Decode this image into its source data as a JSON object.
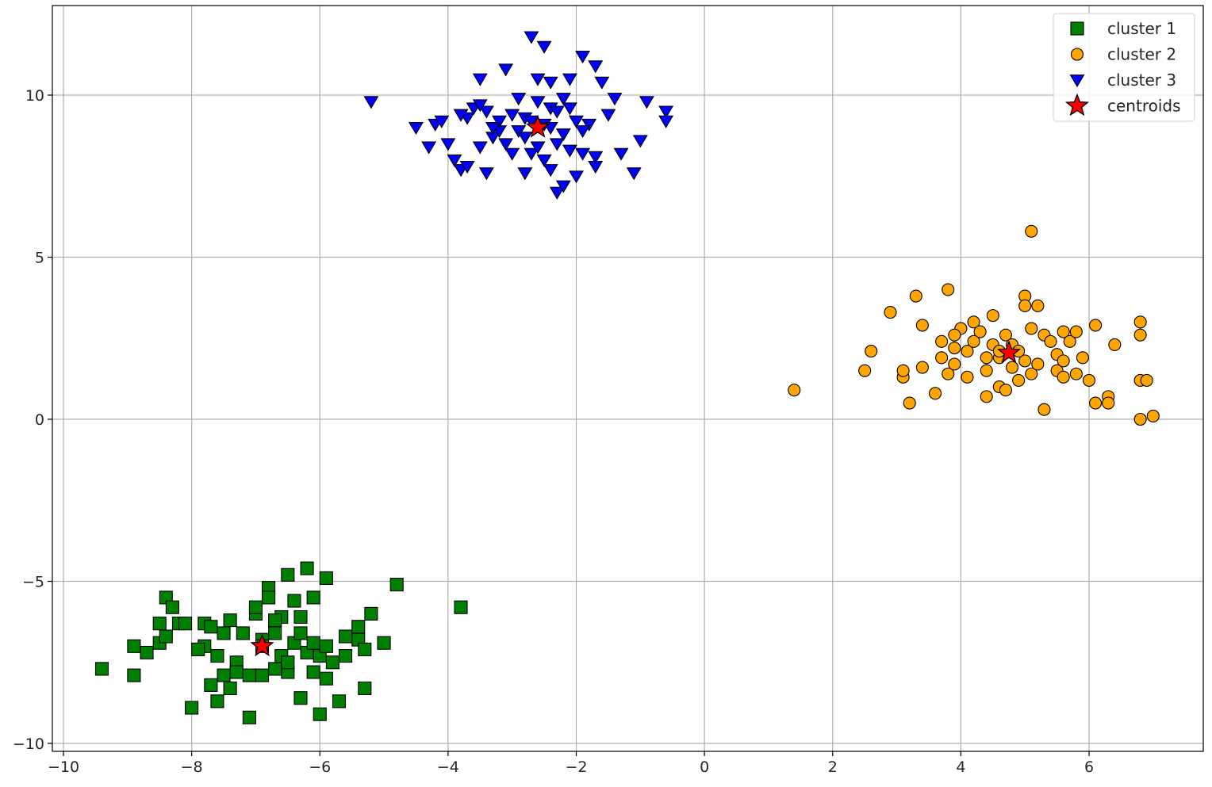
{
  "chart_data": {
    "type": "scatter",
    "title": "",
    "xlabel": "",
    "ylabel": "",
    "xlim": [
      -10.2,
      7.8
    ],
    "ylim": [
      -10.2,
      12.8
    ],
    "grid": true,
    "legend_position": "upper right",
    "x_ticks": [
      -10,
      -8,
      -6,
      -4,
      -2,
      0,
      2,
      4,
      6
    ],
    "y_ticks": [
      -10,
      -5,
      0,
      5,
      10
    ],
    "x_tick_labels": [
      "−10",
      "−8",
      "−6",
      "−4",
      "−2",
      "0",
      "2",
      "4",
      "6"
    ],
    "y_tick_labels": [
      "−10",
      "−5",
      "0",
      "5",
      "10"
    ],
    "series": [
      {
        "name": "cluster 1",
        "marker": "square",
        "color": "#008000",
        "edgecolor": "#000000",
        "points": [
          [
            -9.4,
            -7.7
          ],
          [
            -8.9,
            -7.0
          ],
          [
            -8.9,
            -7.9
          ],
          [
            -8.7,
            -7.2
          ],
          [
            -8.5,
            -6.9
          ],
          [
            -8.5,
            -6.3
          ],
          [
            -8.4,
            -6.7
          ],
          [
            -8.4,
            -5.5
          ],
          [
            -8.3,
            -5.8
          ],
          [
            -8.2,
            -6.3
          ],
          [
            -8.1,
            -6.3
          ],
          [
            -8.0,
            -8.9
          ],
          [
            -7.8,
            -7.0
          ],
          [
            -7.8,
            -6.3
          ],
          [
            -7.7,
            -8.2
          ],
          [
            -7.6,
            -8.7
          ],
          [
            -7.6,
            -7.3
          ],
          [
            -7.5,
            -6.6
          ],
          [
            -7.5,
            -7.9
          ],
          [
            -7.4,
            -8.3
          ],
          [
            -7.4,
            -6.2
          ],
          [
            -7.3,
            -7.5
          ],
          [
            -7.2,
            -6.6
          ],
          [
            -7.1,
            -7.9
          ],
          [
            -7.1,
            -9.2
          ],
          [
            -7.0,
            -6.0
          ],
          [
            -7.0,
            -5.8
          ],
          [
            -6.9,
            -6.8
          ],
          [
            -6.9,
            -7.9
          ],
          [
            -6.8,
            -5.2
          ],
          [
            -6.8,
            -5.5
          ],
          [
            -6.7,
            -6.6
          ],
          [
            -6.7,
            -7.7
          ],
          [
            -6.6,
            -6.1
          ],
          [
            -6.6,
            -7.3
          ],
          [
            -6.5,
            -4.8
          ],
          [
            -6.5,
            -7.8
          ],
          [
            -6.4,
            -6.9
          ],
          [
            -6.4,
            -5.6
          ],
          [
            -6.3,
            -8.6
          ],
          [
            -6.3,
            -6.1
          ],
          [
            -6.2,
            -4.6
          ],
          [
            -6.2,
            -7.2
          ],
          [
            -6.1,
            -7.8
          ],
          [
            -6.1,
            -5.5
          ],
          [
            -6.0,
            -9.1
          ],
          [
            -6.0,
            -7.3
          ],
          [
            -5.9,
            -4.9
          ],
          [
            -5.9,
            -8.0
          ],
          [
            -5.8,
            -7.5
          ],
          [
            -5.7,
            -8.7
          ],
          [
            -5.6,
            -6.7
          ],
          [
            -5.6,
            -7.3
          ],
          [
            -5.4,
            -6.4
          ],
          [
            -5.4,
            -6.8
          ],
          [
            -5.3,
            -7.1
          ],
          [
            -5.3,
            -8.3
          ],
          [
            -5.2,
            -6.0
          ],
          [
            -5.0,
            -6.9
          ],
          [
            -4.8,
            -5.1
          ],
          [
            -3.8,
            -5.8
          ],
          [
            -7.9,
            -7.1
          ],
          [
            -7.7,
            -6.4
          ],
          [
            -7.3,
            -7.8
          ],
          [
            -6.9,
            -7.0
          ],
          [
            -6.7,
            -6.2
          ],
          [
            -6.5,
            -7.5
          ],
          [
            -6.3,
            -6.6
          ],
          [
            -6.1,
            -6.9
          ],
          [
            -5.9,
            -7.0
          ]
        ]
      },
      {
        "name": "cluster 2",
        "marker": "circle",
        "color": "#ffa500",
        "edgecolor": "#000000",
        "points": [
          [
            1.4,
            0.9
          ],
          [
            2.5,
            1.5
          ],
          [
            2.6,
            2.1
          ],
          [
            2.9,
            3.3
          ],
          [
            3.1,
            1.3
          ],
          [
            3.1,
            1.5
          ],
          [
            3.2,
            0.5
          ],
          [
            3.3,
            3.8
          ],
          [
            3.4,
            2.9
          ],
          [
            3.4,
            1.6
          ],
          [
            3.6,
            0.8
          ],
          [
            3.7,
            2.4
          ],
          [
            3.7,
            1.9
          ],
          [
            3.8,
            4.0
          ],
          [
            3.8,
            1.4
          ],
          [
            3.9,
            2.2
          ],
          [
            3.9,
            1.7
          ],
          [
            4.0,
            2.8
          ],
          [
            4.1,
            2.1
          ],
          [
            4.1,
            1.3
          ],
          [
            4.2,
            3.0
          ],
          [
            4.3,
            2.7
          ],
          [
            4.4,
            0.7
          ],
          [
            4.4,
            1.5
          ],
          [
            4.5,
            3.2
          ],
          [
            4.5,
            2.3
          ],
          [
            4.6,
            1.0
          ],
          [
            4.6,
            1.9
          ],
          [
            4.7,
            2.6
          ],
          [
            4.7,
            0.9
          ],
          [
            4.8,
            1.6
          ],
          [
            4.8,
            2.3
          ],
          [
            4.9,
            1.2
          ],
          [
            5.0,
            3.8
          ],
          [
            5.0,
            3.5
          ],
          [
            5.0,
            1.8
          ],
          [
            5.1,
            2.8
          ],
          [
            5.1,
            1.4
          ],
          [
            5.1,
            5.8
          ],
          [
            5.2,
            3.5
          ],
          [
            5.2,
            1.7
          ],
          [
            5.3,
            2.6
          ],
          [
            5.3,
            0.3
          ],
          [
            5.4,
            2.4
          ],
          [
            5.5,
            2.0
          ],
          [
            5.5,
            1.5
          ],
          [
            5.6,
            2.7
          ],
          [
            5.6,
            1.8
          ],
          [
            5.7,
            2.4
          ],
          [
            5.8,
            1.4
          ],
          [
            5.8,
            2.7
          ],
          [
            5.9,
            1.9
          ],
          [
            6.0,
            1.2
          ],
          [
            6.1,
            2.9
          ],
          [
            6.1,
            0.5
          ],
          [
            6.3,
            0.7
          ],
          [
            6.3,
            0.5
          ],
          [
            6.4,
            2.3
          ],
          [
            6.8,
            3.0
          ],
          [
            6.8,
            2.6
          ],
          [
            6.8,
            1.2
          ],
          [
            6.8,
            0.0
          ],
          [
            6.9,
            1.2
          ],
          [
            7.0,
            0.1
          ],
          [
            4.2,
            2.4
          ],
          [
            4.4,
            1.9
          ],
          [
            4.9,
            2.1
          ],
          [
            5.6,
            1.3
          ],
          [
            3.9,
            2.6
          ],
          [
            4.6,
            2.1
          ]
        ]
      },
      {
        "name": "cluster 3",
        "marker": "triangle_down",
        "color": "#0000ff",
        "edgecolor": "#000000",
        "points": [
          [
            -5.2,
            9.8
          ],
          [
            -4.5,
            9.0
          ],
          [
            -4.3,
            8.4
          ],
          [
            -4.2,
            9.1
          ],
          [
            -4.1,
            9.2
          ],
          [
            -4.0,
            8.5
          ],
          [
            -3.9,
            8.0
          ],
          [
            -3.8,
            7.7
          ],
          [
            -3.7,
            7.8
          ],
          [
            -3.7,
            9.3
          ],
          [
            -3.6,
            9.6
          ],
          [
            -3.5,
            8.4
          ],
          [
            -3.5,
            10.5
          ],
          [
            -3.4,
            7.6
          ],
          [
            -3.4,
            9.5
          ],
          [
            -3.3,
            8.7
          ],
          [
            -3.2,
            8.9
          ],
          [
            -3.2,
            9.2
          ],
          [
            -3.1,
            8.5
          ],
          [
            -3.1,
            10.8
          ],
          [
            -3.0,
            9.4
          ],
          [
            -3.0,
            8.2
          ],
          [
            -2.9,
            9.9
          ],
          [
            -2.9,
            8.9
          ],
          [
            -2.8,
            7.6
          ],
          [
            -2.8,
            9.3
          ],
          [
            -2.7,
            11.8
          ],
          [
            -2.7,
            8.2
          ],
          [
            -2.6,
            9.8
          ],
          [
            -2.6,
            10.5
          ],
          [
            -2.5,
            9.1
          ],
          [
            -2.5,
            8.0
          ],
          [
            -2.5,
            11.5
          ],
          [
            -2.4,
            9.6
          ],
          [
            -2.4,
            7.7
          ],
          [
            -2.4,
            10.4
          ],
          [
            -2.3,
            7.0
          ],
          [
            -2.3,
            8.5
          ],
          [
            -2.3,
            9.5
          ],
          [
            -2.2,
            8.8
          ],
          [
            -2.2,
            7.2
          ],
          [
            -2.2,
            9.9
          ],
          [
            -2.1,
            10.5
          ],
          [
            -2.1,
            8.3
          ],
          [
            -2.0,
            9.2
          ],
          [
            -2.0,
            7.5
          ],
          [
            -1.9,
            11.2
          ],
          [
            -1.9,
            8.2
          ],
          [
            -1.8,
            9.1
          ],
          [
            -1.7,
            10.9
          ],
          [
            -1.7,
            7.8
          ],
          [
            -1.7,
            8.1
          ],
          [
            -1.6,
            10.4
          ],
          [
            -1.5,
            9.4
          ],
          [
            -1.4,
            9.9
          ],
          [
            -1.3,
            8.2
          ],
          [
            -1.1,
            7.6
          ],
          [
            -1.0,
            8.6
          ],
          [
            -0.9,
            9.8
          ],
          [
            -0.6,
            9.5
          ],
          [
            -0.6,
            9.2
          ],
          [
            -3.8,
            9.4
          ],
          [
            -3.3,
            9.0
          ],
          [
            -2.8,
            8.7
          ],
          [
            -2.6,
            8.4
          ],
          [
            -2.4,
            9.0
          ],
          [
            -2.1,
            9.6
          ],
          [
            -1.9,
            8.9
          ],
          [
            -3.5,
            9.7
          ],
          [
            -2.7,
            9.2
          ]
        ]
      },
      {
        "name": "centroids",
        "marker": "star",
        "color": "#ff0000",
        "edgecolor": "#000000",
        "points": [
          [
            -6.9,
            -7.0
          ],
          [
            4.75,
            2.05
          ],
          [
            -2.6,
            9.0
          ]
        ]
      }
    ]
  },
  "legend": {
    "items": [
      {
        "label": "cluster 1",
        "marker": "square",
        "color": "#008000"
      },
      {
        "label": "cluster 2",
        "marker": "circle",
        "color": "#ffa500"
      },
      {
        "label": "cluster 3",
        "marker": "triangle_down",
        "color": "#0000ff"
      },
      {
        "label": "centroids",
        "marker": "star",
        "color": "#ff0000"
      }
    ]
  }
}
